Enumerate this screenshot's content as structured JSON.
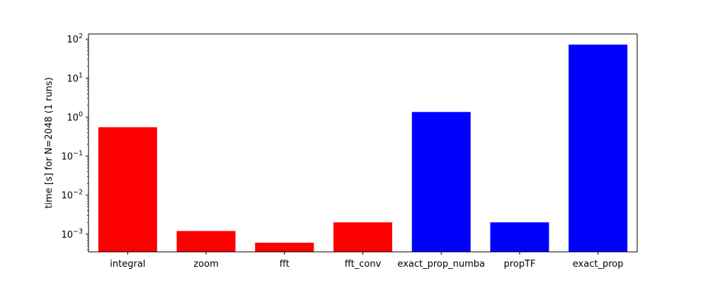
{
  "chart_data": {
    "type": "bar",
    "scale": "log",
    "categories": [
      "integral",
      "zoom",
      "fft",
      "fft_conv",
      "exact_prop_numba",
      "propTF",
      "exact_prop"
    ],
    "values": [
      0.55,
      0.0012,
      0.0006,
      0.002,
      1.35,
      0.002,
      72
    ],
    "colors": [
      "#ff0000",
      "#ff0000",
      "#ff0000",
      "#ff0000",
      "#0000ff",
      "#0000ff",
      "#0000ff"
    ],
    "ylabel": "time [s] for N=2048 (1 runs)",
    "ylim": [
      0.00035,
      135
    ],
    "ytick_values": [
      0.001,
      0.01,
      0.1,
      1,
      10,
      100
    ],
    "ytick_labels": [
      {
        "base": "10",
        "exp": "−3"
      },
      {
        "base": "10",
        "exp": "−2"
      },
      {
        "base": "10",
        "exp": "−1"
      },
      {
        "base": "10",
        "exp": "0"
      },
      {
        "base": "10",
        "exp": "1"
      },
      {
        "base": "10",
        "exp": "2"
      }
    ],
    "grid": false
  }
}
